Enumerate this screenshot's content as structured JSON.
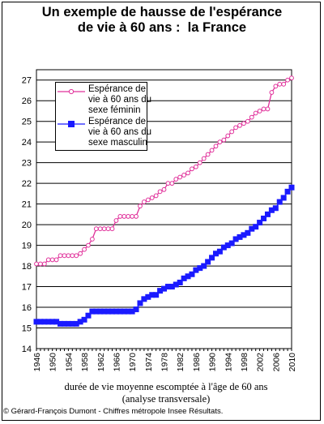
{
  "title_lines": [
    "Un exemple de hausse de l'espérance",
    "de vie à 60 ans :  la France"
  ],
  "caption_lines": [
    "durée de vie moyenne escomptée à l'âge de 60 ans",
    "(analyse transversale)"
  ],
  "copyright": "© Gérard-François Dumont - Chiffres métropole Insee Résultats.",
  "colors": {
    "female": "#e0309a",
    "male": "#1a1aff"
  },
  "legend": {
    "female": [
      "Espérance de",
      "vie à 60 ans du",
      "sexe féminin"
    ],
    "male": [
      "Espérance de",
      "vie à 60 ans du",
      "sexe masculin"
    ]
  },
  "chart_data": {
    "type": "line",
    "xlim": [
      1946,
      2010
    ],
    "ylim": [
      14,
      27.5
    ],
    "y_ticks": [
      14,
      15,
      16,
      17,
      18,
      19,
      20,
      21,
      22,
      23,
      24,
      25,
      26,
      27
    ],
    "x_ticks": [
      1946,
      1950,
      1954,
      1958,
      1962,
      1966,
      1970,
      1974,
      1978,
      1982,
      1986,
      1990,
      1994,
      1998,
      2002,
      2006,
      2010
    ],
    "legend_position": "top-left",
    "grid": true,
    "x": [
      1946,
      1947,
      1948,
      1949,
      1950,
      1951,
      1952,
      1953,
      1954,
      1955,
      1956,
      1957,
      1958,
      1959,
      1960,
      1961,
      1962,
      1963,
      1964,
      1965,
      1966,
      1967,
      1968,
      1969,
      1970,
      1971,
      1972,
      1973,
      1974,
      1975,
      1976,
      1977,
      1978,
      1979,
      1980,
      1981,
      1982,
      1983,
      1984,
      1985,
      1986,
      1987,
      1988,
      1989,
      1990,
      1991,
      1992,
      1993,
      1994,
      1995,
      1996,
      1997,
      1998,
      1999,
      2000,
      2001,
      2002,
      2003,
      2004,
      2005,
      2006,
      2007,
      2008,
      2009,
      2010
    ],
    "series": [
      {
        "name": "Espérance de vie à 60 ans du sexe féminin",
        "marker": "circle",
        "values": [
          18.1,
          18.1,
          18.1,
          18.3,
          18.3,
          18.3,
          18.5,
          18.5,
          18.5,
          18.5,
          18.5,
          18.6,
          18.8,
          19.0,
          19.3,
          19.8,
          19.8,
          19.8,
          19.8,
          19.8,
          20.2,
          20.4,
          20.4,
          20.4,
          20.4,
          20.4,
          20.9,
          21.1,
          21.2,
          21.3,
          21.4,
          21.6,
          21.7,
          22.0,
          22.0,
          22.2,
          22.3,
          22.4,
          22.5,
          22.7,
          22.8,
          23.0,
          23.2,
          23.4,
          23.6,
          23.8,
          24.0,
          24.1,
          24.3,
          24.5,
          24.7,
          24.8,
          24.9,
          25.0,
          25.2,
          25.4,
          25.5,
          25.6,
          25.6,
          26.4,
          26.7,
          26.8,
          26.8,
          27.0,
          27.1
        ]
      },
      {
        "name": "Espérance de vie à 60 ans du sexe masculin",
        "marker": "square",
        "values": [
          15.3,
          15.3,
          15.3,
          15.3,
          15.3,
          15.3,
          15.2,
          15.2,
          15.2,
          15.2,
          15.2,
          15.3,
          15.4,
          15.6,
          15.8,
          15.8,
          15.8,
          15.8,
          15.8,
          15.8,
          15.8,
          15.8,
          15.8,
          15.8,
          15.8,
          15.9,
          16.2,
          16.4,
          16.5,
          16.6,
          16.6,
          16.8,
          16.9,
          17.0,
          17.0,
          17.1,
          17.2,
          17.4,
          17.5,
          17.6,
          17.8,
          17.9,
          18.0,
          18.2,
          18.4,
          18.6,
          18.7,
          18.9,
          19.0,
          19.1,
          19.3,
          19.4,
          19.5,
          19.6,
          19.8,
          19.9,
          20.1,
          20.3,
          20.5,
          20.7,
          20.8,
          21.1,
          21.3,
          21.6,
          21.8
        ]
      }
    ]
  }
}
